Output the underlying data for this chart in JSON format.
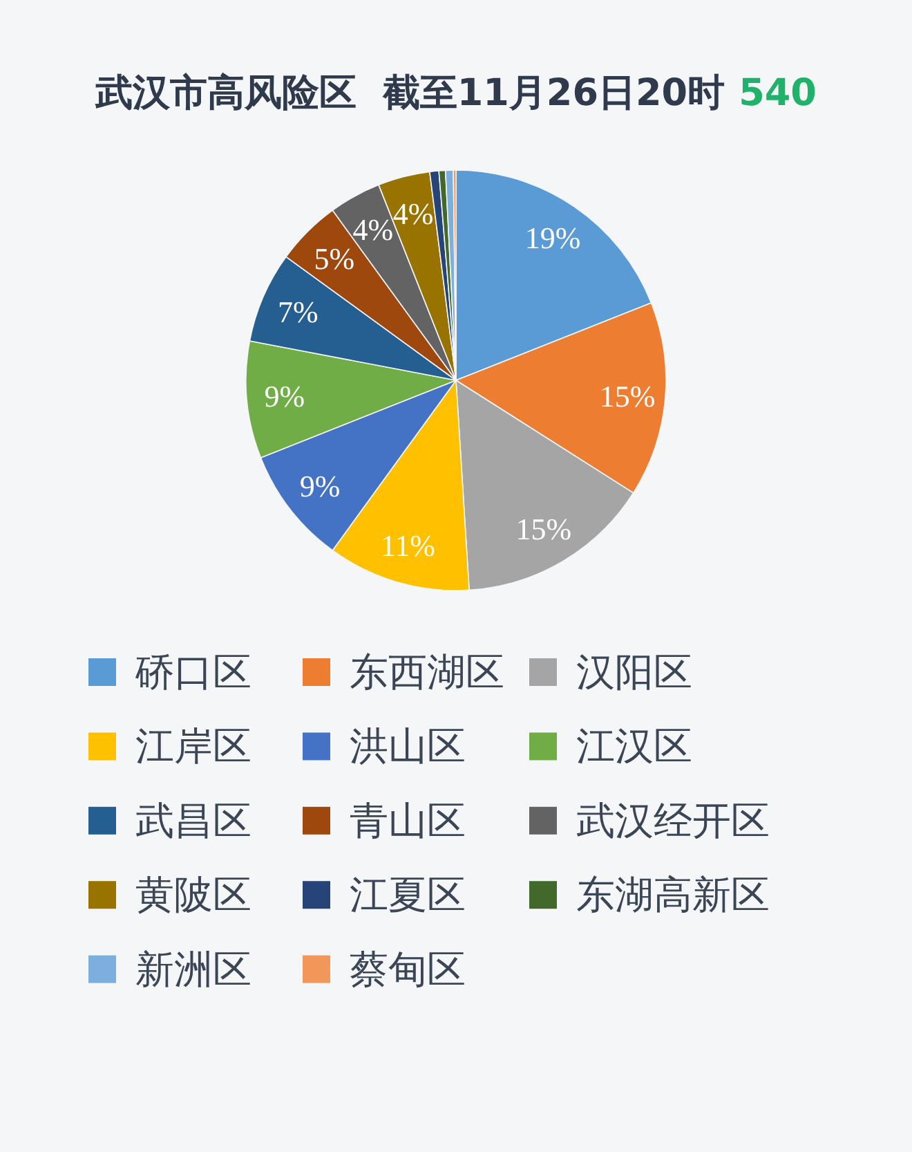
{
  "chart_data": {
    "type": "pie",
    "title": "武汉市高风险区  截至11月26日20时",
    "annotations": [
      "540"
    ],
    "categories": [
      "硚口区",
      "东西湖区",
      "汉阳区",
      "江岸区",
      "洪山区",
      "江汉区",
      "武昌区",
      "青山区",
      "武汉经开区",
      "黄陂区",
      "江夏区",
      "东湖高新区",
      "新洲区",
      "蔡甸区"
    ],
    "values": [
      19,
      15,
      15,
      11,
      9,
      9,
      7,
      5,
      4,
      4,
      0.7,
      0.5,
      0.6,
      0.2
    ],
    "colors": [
      "#5b9bd5",
      "#ed7d31",
      "#a5a5a5",
      "#ffc000",
      "#4472c4",
      "#70ad47",
      "#255e91",
      "#9e480e",
      "#636363",
      "#997300",
      "#264478",
      "#43682b",
      "#7cafdd",
      "#f1975a"
    ],
    "value_labels": [
      "19%",
      "15%",
      "15%",
      "11%",
      "9%",
      "9%",
      "7%",
      "5%",
      "4%",
      "4%",
      null,
      null,
      null,
      null
    ],
    "legend": "bottom"
  }
}
